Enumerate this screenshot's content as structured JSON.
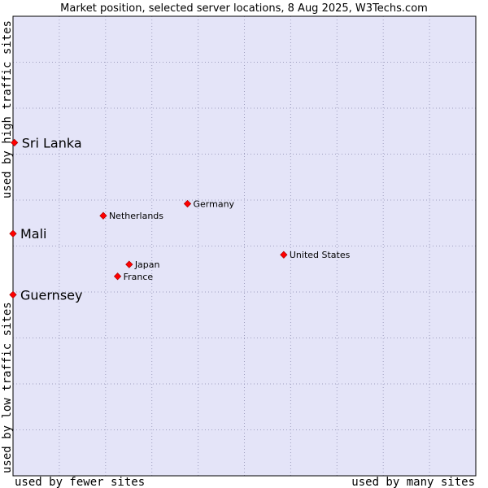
{
  "chart_data": {
    "type": "scatter",
    "title": "Market position, selected server locations, 8 Aug 2025, W3Techs.com",
    "xlabel_left": "used by fewer sites",
    "xlabel_right": "used by many sites",
    "ylabel_bottom": "used by low traffic sites",
    "ylabel_top": "used by high traffic sites",
    "xlim": [
      0,
      100
    ],
    "ylim": [
      0,
      100
    ],
    "grid": true,
    "colors": {
      "plot_bg": "#e4e4f8",
      "grid": "#a0a0c0",
      "frame": "#000000",
      "marker": "#ff0000",
      "marker_edge": "#990000"
    },
    "points": [
      {
        "label": "Sri Lanka",
        "x": 0.3,
        "y": 72.5,
        "size": "large"
      },
      {
        "label": "Mali",
        "x": 0.0,
        "y": 52.7,
        "size": "large"
      },
      {
        "label": "Guernsey",
        "x": 0.0,
        "y": 39.4,
        "size": "large"
      },
      {
        "label": "Germany",
        "x": 37.7,
        "y": 59.2,
        "size": "small"
      },
      {
        "label": "Netherlands",
        "x": 19.5,
        "y": 56.6,
        "size": "small"
      },
      {
        "label": "United States",
        "x": 58.5,
        "y": 48.1,
        "size": "small"
      },
      {
        "label": "Japan",
        "x": 25.1,
        "y": 46.0,
        "size": "small"
      },
      {
        "label": "France",
        "x": 22.6,
        "y": 43.4,
        "size": "small"
      }
    ]
  }
}
